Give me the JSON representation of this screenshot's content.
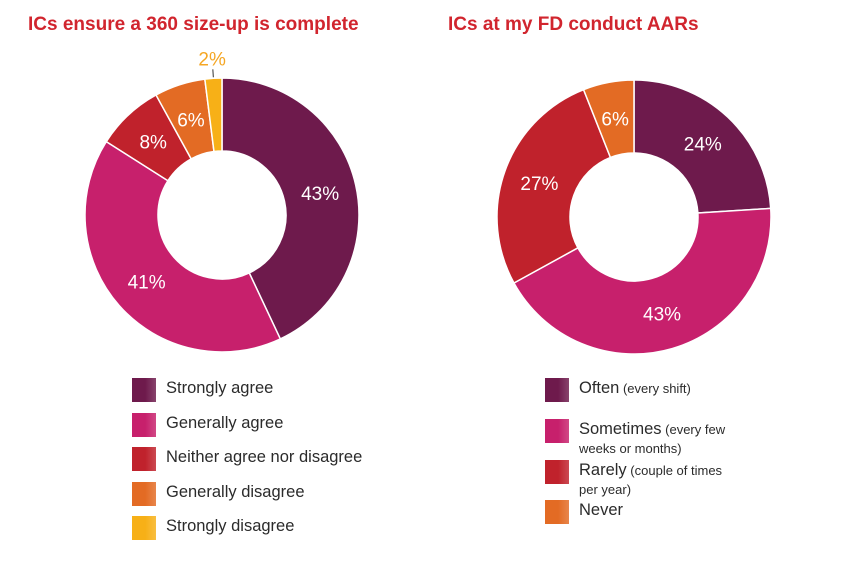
{
  "colors": {
    "strongly_agree": "#6e1a4c",
    "generally_agree": "#c7206c",
    "neither": "#c0222c",
    "generally_disagree": "#e36b24",
    "strongly_disagree": "#f7b017",
    "title": "#d1252e"
  },
  "chart_data": [
    {
      "type": "pie",
      "title": "ICs ensure a 360 size-up is complete",
      "slices": [
        {
          "label": "Strongly agree",
          "value": 43,
          "display": "43%",
          "color": "#6e1a4c"
        },
        {
          "label": "Generally agree",
          "value": 41,
          "display": "41%",
          "color": "#c7206c"
        },
        {
          "label": "Neither agree nor disagree",
          "value": 8,
          "display": "8%",
          "color": "#c0222c"
        },
        {
          "label": "Generally disagree",
          "value": 6,
          "display": "6%",
          "color": "#e36b24"
        },
        {
          "label": "Strongly disagree",
          "value": 2,
          "display": "2%",
          "color": "#f7b017"
        }
      ],
      "legend": [
        {
          "label": "Strongly agree",
          "sub": "",
          "sub2": ""
        },
        {
          "label": "Generally agree",
          "sub": "",
          "sub2": ""
        },
        {
          "label": "Neither agree nor disagree",
          "sub": "",
          "sub2": ""
        },
        {
          "label": "Generally disagree",
          "sub": "",
          "sub2": ""
        },
        {
          "label": "Strongly disagree",
          "sub": "",
          "sub2": ""
        }
      ]
    },
    {
      "type": "pie",
      "title": "ICs at my FD conduct AARs",
      "slices": [
        {
          "label": "Often",
          "value": 24,
          "display": "24%",
          "color": "#6e1a4c"
        },
        {
          "label": "Sometimes",
          "value": 43,
          "display": "43%",
          "color": "#c7206c"
        },
        {
          "label": "Rarely",
          "value": 27,
          "display": "27%",
          "color": "#c0222c"
        },
        {
          "label": "Never",
          "value": 6,
          "display": "6%",
          "color": "#e36b24"
        }
      ],
      "legend": [
        {
          "label": "Often",
          "sub": "(every shift)",
          "sub2": ""
        },
        {
          "label": "Sometimes",
          "sub": "(every few",
          "sub2": "weeks or months)"
        },
        {
          "label": "Rarely",
          "sub": "(couple of times",
          "sub2": "per year)"
        },
        {
          "label": "Never",
          "sub": "",
          "sub2": ""
        }
      ]
    }
  ]
}
